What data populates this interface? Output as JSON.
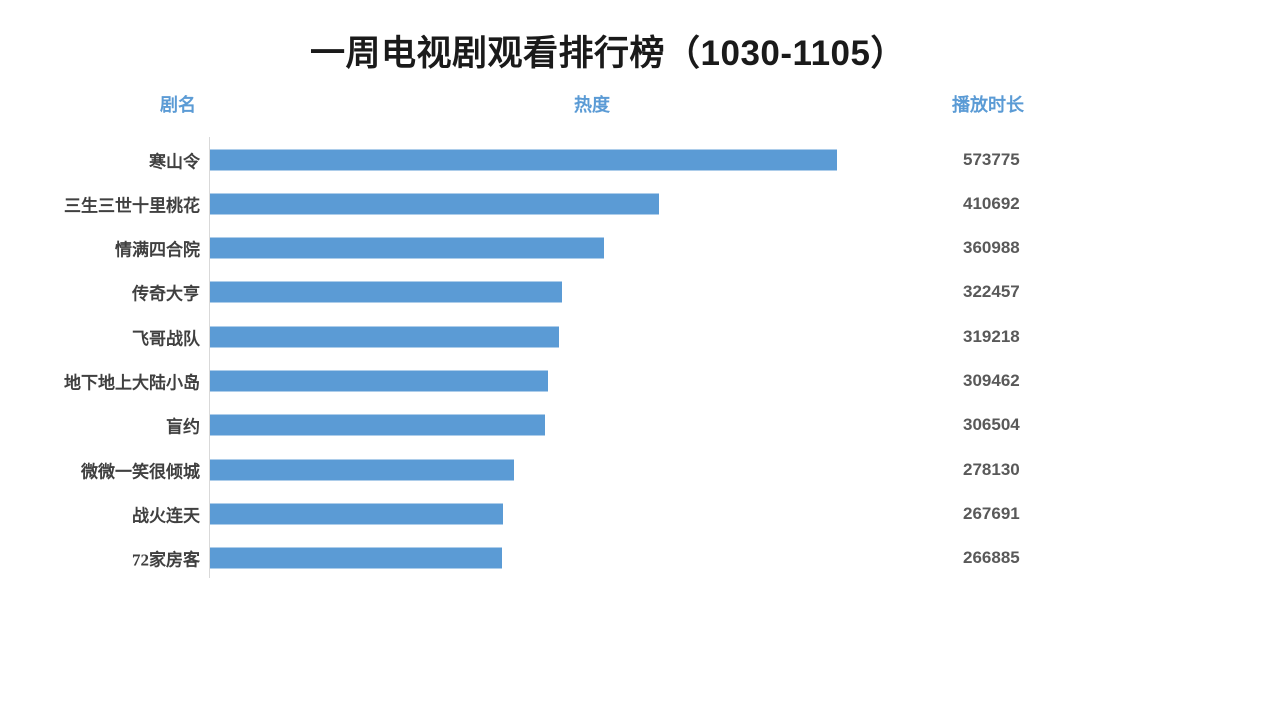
{
  "page": {
    "background": "#ffffff"
  },
  "header": {
    "title": "一周电视剧观看排行榜（1030-1105）"
  },
  "columns": {
    "name": "剧名",
    "heat": "热度",
    "duration": "播放时长"
  },
  "chart_data": {
    "type": "bar",
    "orientation": "horizontal",
    "title": "一周电视剧观看排行榜（1030-1105）",
    "series_label": "播放时长",
    "categories": [
      "寒山令",
      "三生三世十里桃花",
      "情满四合院",
      "传奇大亨",
      "飞哥战队",
      "地下地上大陆小岛",
      "盲约",
      "微微一笑很倾城",
      "战火连天",
      "72家房客"
    ],
    "values": [
      573775,
      410692,
      360988,
      322457,
      319218,
      309462,
      306504,
      278130,
      267691,
      266885
    ],
    "value_labels": [
      "573775",
      "410692",
      "360988",
      "322457",
      "319218",
      "309462",
      "306504",
      "278130",
      "267691",
      "266885"
    ],
    "sort": "descending",
    "grid": "off",
    "legend": "off",
    "x_axis_ticks": "hidden",
    "bar_color": "#5b9bd5",
    "axis_line_color": "#d9d9d9"
  },
  "colors": {
    "accent_blue": "#5b9bd5",
    "title_text": "#1a1a1a",
    "category_text": "#404040",
    "value_text": "#595959",
    "axis_line": "#d9d9d9",
    "background": "#ffffff"
  }
}
